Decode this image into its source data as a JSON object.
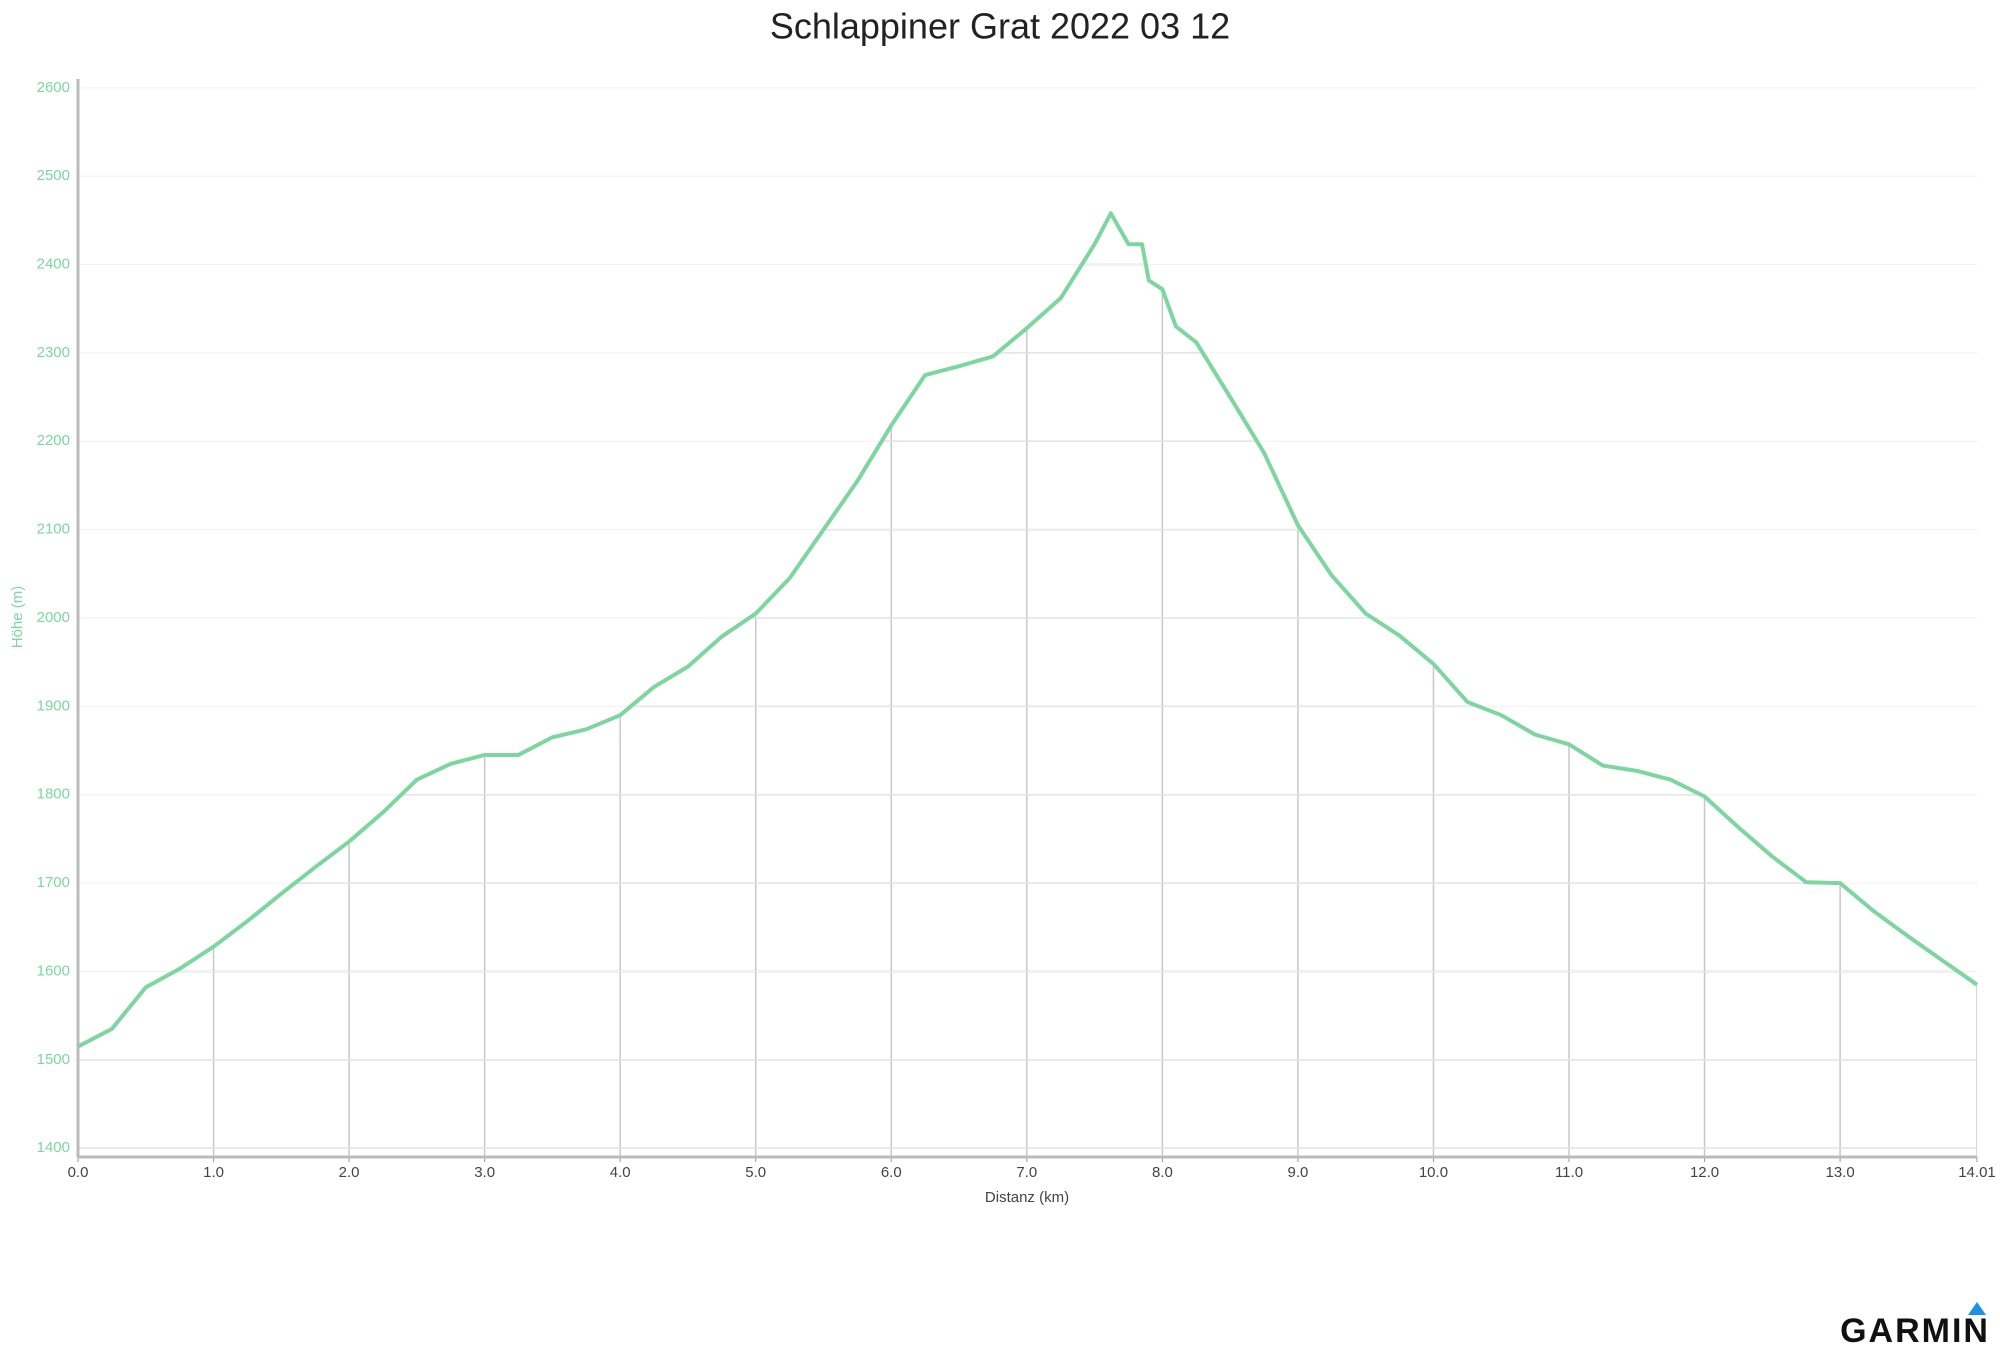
{
  "chart_data": {
    "type": "line",
    "title": "Schlappiner Grat 2022 03 12",
    "xlabel": "Distanz (km)",
    "ylabel": "Höhe (m)",
    "brand": "GARMIN",
    "color": "#7dd6a0",
    "grid": true,
    "xlim": [
      0,
      14.01
    ],
    "ylim": [
      1390,
      2610
    ],
    "xticks": [
      {
        "value": 0,
        "label": "0.0"
      },
      {
        "value": 1,
        "label": "1.0"
      },
      {
        "value": 2,
        "label": "2.0"
      },
      {
        "value": 3,
        "label": "3.0"
      },
      {
        "value": 4,
        "label": "4.0"
      },
      {
        "value": 5,
        "label": "5.0"
      },
      {
        "value": 6,
        "label": "6.0"
      },
      {
        "value": 7,
        "label": "7.0"
      },
      {
        "value": 8,
        "label": "8.0"
      },
      {
        "value": 9,
        "label": "9.0"
      },
      {
        "value": 10,
        "label": "10.0"
      },
      {
        "value": 11,
        "label": "11.0"
      },
      {
        "value": 12,
        "label": "12.0"
      },
      {
        "value": 13,
        "label": "13.0"
      },
      14.01
    ],
    "yticks": [
      1400,
      1500,
      1600,
      1700,
      1800,
      1900,
      2000,
      2100,
      2200,
      2300,
      2400,
      2500,
      2600
    ],
    "x": [
      0,
      0.25,
      0.5,
      0.75,
      1,
      1.25,
      1.5,
      1.75,
      2,
      2.25,
      2.5,
      2.75,
      3,
      3.25,
      3.5,
      3.75,
      4,
      4.25,
      4.5,
      4.75,
      5,
      5.25,
      5.5,
      5.75,
      6,
      6.25,
      6.5,
      6.75,
      7,
      7.25,
      7.5,
      7.62,
      7.75,
      7.85,
      7.9,
      8,
      8.1,
      8.25,
      8.5,
      8.75,
      9,
      9.25,
      9.5,
      9.75,
      10,
      10.25,
      10.5,
      10.75,
      11,
      11.25,
      11.5,
      11.75,
      12,
      12.25,
      12.5,
      12.75,
      13,
      13.25,
      13.5,
      13.75,
      14.01
    ],
    "values": [
      1515,
      1535,
      1582,
      1603,
      1628,
      1657,
      1688,
      1718,
      1747,
      1780,
      1817,
      1835,
      1845,
      1845,
      1865,
      1874,
      1890,
      1922,
      1945,
      1979,
      2005,
      2045,
      2100,
      2155,
      2218,
      2275,
      2285,
      2296,
      2328,
      2362,
      2423,
      2458,
      2423,
      2423,
      2382,
      2372,
      2330,
      2312,
      2250,
      2187,
      2105,
      2048,
      2005,
      1980,
      1948,
      1905,
      1890,
      1868,
      1857,
      1833,
      1827,
      1817,
      1798,
      1763,
      1730,
      1701,
      1700,
      1668,
      1640,
      1613,
      1585
    ]
  }
}
